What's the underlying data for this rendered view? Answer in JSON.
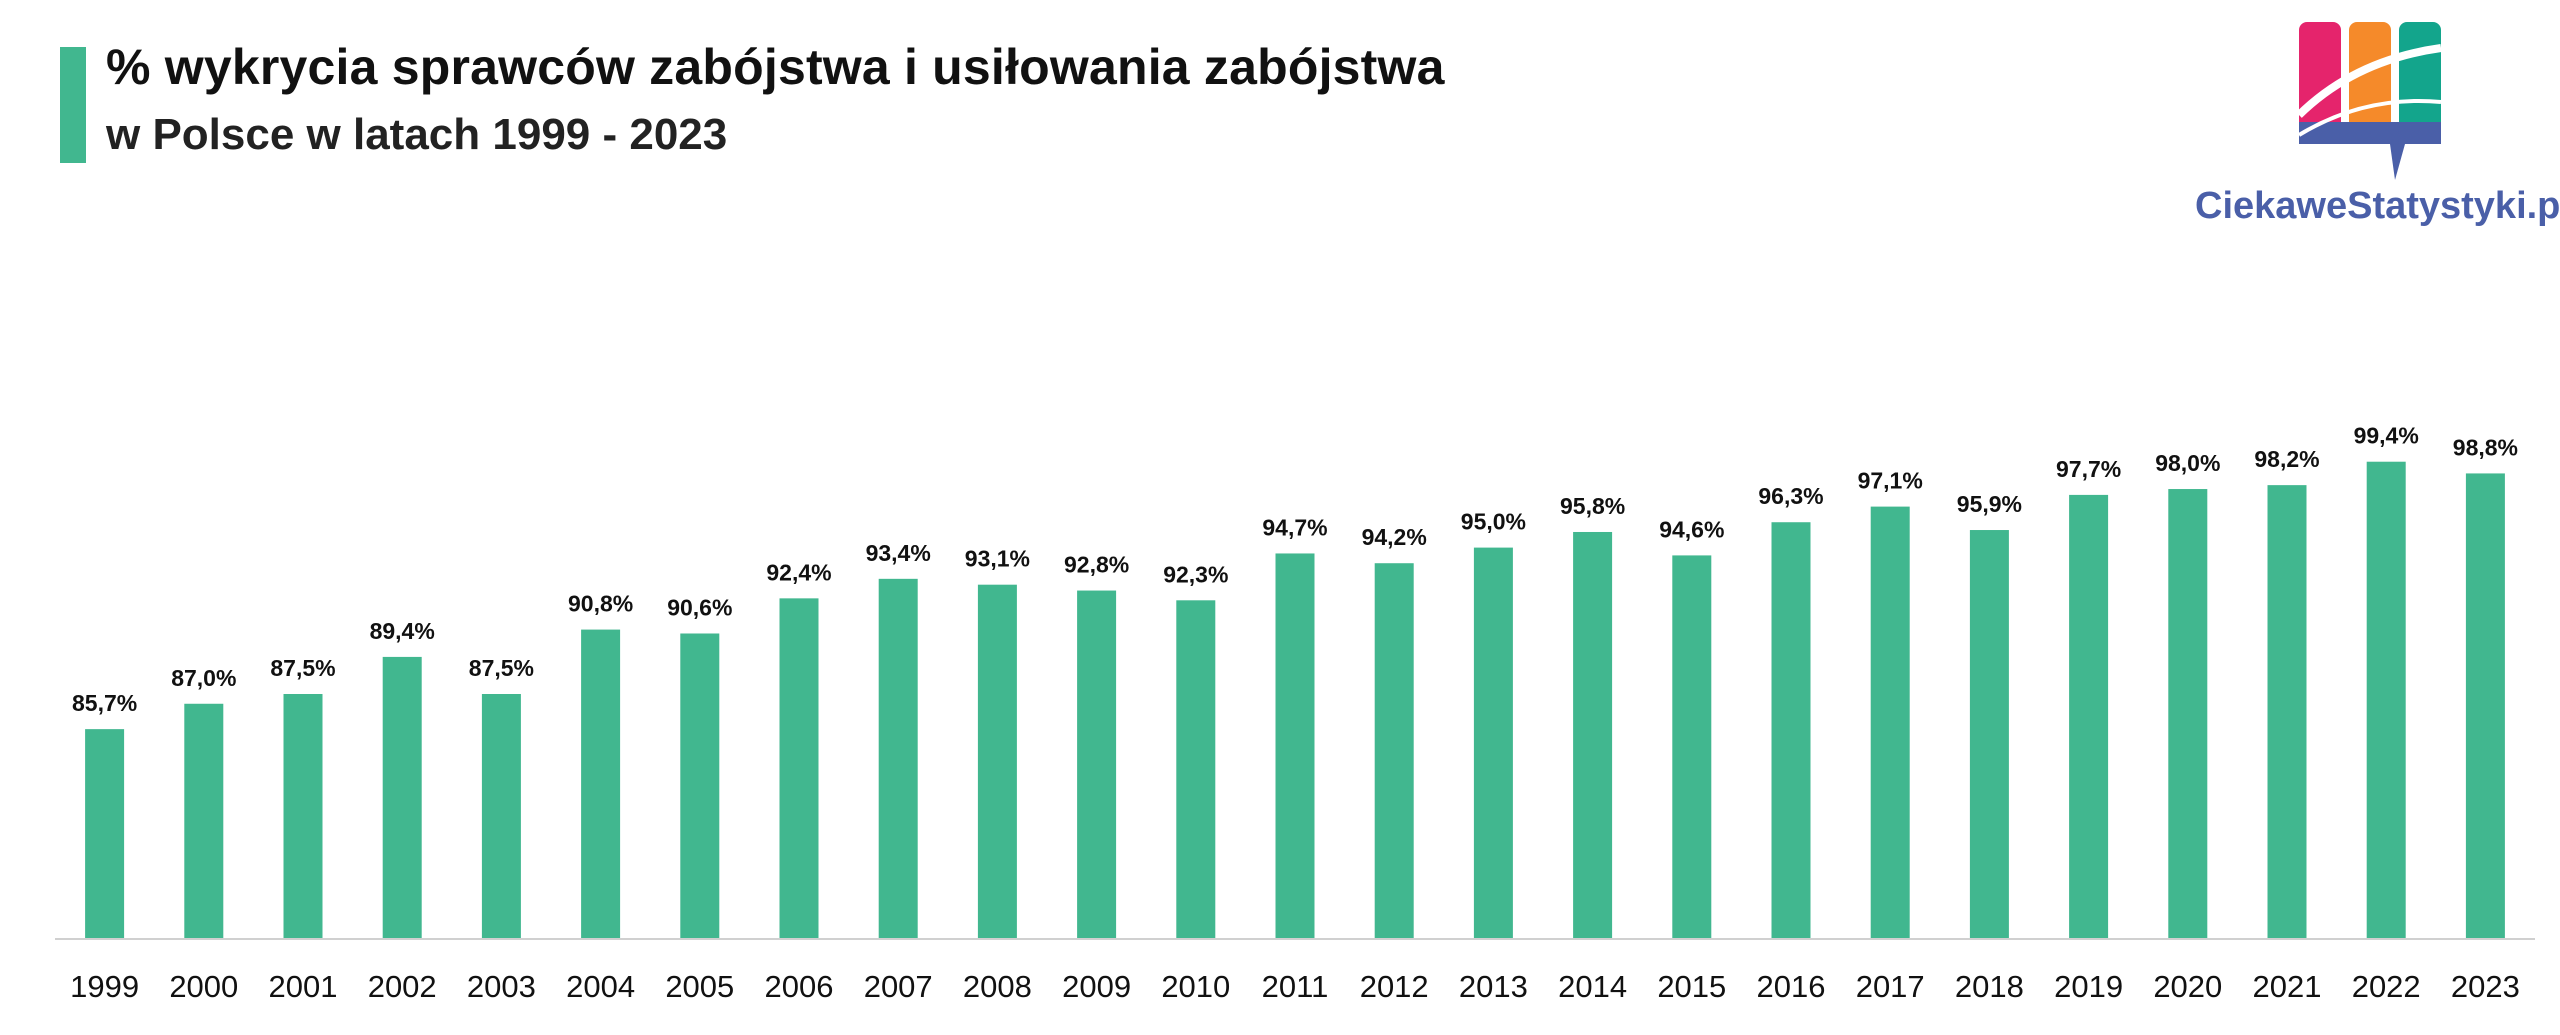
{
  "header": {
    "title": "% wykrycia sprawców zabójstwa i usiłowania zabójstwa",
    "subtitle": "w Polsce w latach 1999 - 2023"
  },
  "logo": {
    "text": "CiekaweStatystyki.pl",
    "icon": "bookshelf-chart-icon",
    "colors": [
      "#e5246c",
      "#f58a2a",
      "#13a58c",
      "#4a5fa8"
    ]
  },
  "colors": {
    "bar": "#41b78f",
    "accent": "#41b78f",
    "axis": "#d0d0d0"
  },
  "chart_data": {
    "type": "bar",
    "title": "",
    "xlabel": "",
    "ylabel": "",
    "categories": [
      "1999",
      "2000",
      "2001",
      "2002",
      "2003",
      "2004",
      "2005",
      "2006",
      "2007",
      "2008",
      "2009",
      "2010",
      "2011",
      "2012",
      "2013",
      "2014",
      "2015",
      "2016",
      "2017",
      "2018",
      "2019",
      "2020",
      "2021",
      "2022",
      "2023"
    ],
    "values": [
      85.7,
      87.0,
      87.5,
      89.4,
      87.5,
      90.8,
      90.6,
      92.4,
      93.4,
      93.1,
      92.8,
      92.3,
      94.7,
      94.2,
      95.0,
      95.8,
      94.6,
      96.3,
      97.1,
      95.9,
      97.7,
      98.0,
      98.2,
      99.4,
      98.8
    ],
    "labels": [
      "85,7%",
      "87,0%",
      "87,5%",
      "89,4%",
      "87,5%",
      "90,8%",
      "90,6%",
      "92,4%",
      "93,4%",
      "93,1%",
      "92,8%",
      "92,3%",
      "94,7%",
      "94,2%",
      "95,0%",
      "95,8%",
      "94,6%",
      "96,3%",
      "97,1%",
      "95,9%",
      "97,7%",
      "98,0%",
      "98,2%",
      "99,4%",
      "98,8%"
    ],
    "ylim": [
      75,
      100
    ],
    "grid": false,
    "legend": "none"
  }
}
